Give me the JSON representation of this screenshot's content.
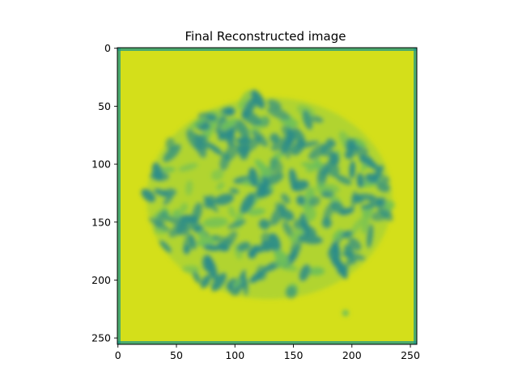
{
  "title": "Final Reconstructed image",
  "image": {
    "description": "blurred circular texture of dark teal blobs on a yellow-green background",
    "colormap": "viridis",
    "background_color": "#d4df1a",
    "blob_color": "#2a8c8a",
    "mid_color": "#6ec05a",
    "edge_color": "#1f9a8a",
    "pixel_extent": [
      0,
      256
    ]
  },
  "axes": {
    "x_ticks": [
      0,
      50,
      100,
      150,
      200,
      250
    ],
    "y_ticks": [
      0,
      50,
      100,
      150,
      200,
      250
    ],
    "x_tick_labels": [
      "0",
      "50",
      "100",
      "150",
      "200",
      "250"
    ],
    "y_tick_labels": [
      "0",
      "50",
      "100",
      "150",
      "200",
      "250"
    ],
    "y_inverted": true
  }
}
